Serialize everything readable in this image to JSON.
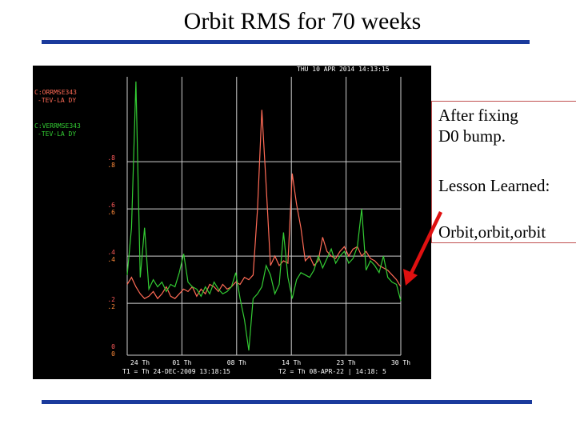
{
  "slide": {
    "title": "Orbit RMS for 70 weeks",
    "notes": {
      "after": "After fixing\nD0 bump.",
      "lesson": "Lesson Learned:",
      "orbit": "Orbit,orbit,orbit"
    },
    "accent_color": "#1a3a9c",
    "arrow_color": "#e01010"
  },
  "chart_data": {
    "type": "line",
    "header": "THU 10 APR 2014 14:13:15",
    "series": [
      {
        "name": "C:ORRMSE343",
        "legend_sub": "-TEV-LA DY",
        "color": "#ff6a55",
        "y": [
          0.28,
          0.31,
          0.27,
          0.24,
          0.22,
          0.23,
          0.25,
          0.22,
          0.24,
          0.27,
          0.23,
          0.22,
          0.24,
          0.26,
          0.25,
          0.27,
          0.23,
          0.26,
          0.24,
          0.28,
          0.27,
          0.25,
          0.28,
          0.26,
          0.27,
          0.29,
          0.28,
          0.31,
          0.3,
          0.32,
          0.6,
          1.02,
          0.7,
          0.36,
          0.4,
          0.36,
          0.38,
          0.37,
          0.75,
          0.62,
          0.52,
          0.38,
          0.4,
          0.36,
          0.38,
          0.48,
          0.42,
          0.4,
          0.39,
          0.42,
          0.44,
          0.4,
          0.43,
          0.44,
          0.4,
          0.42,
          0.39,
          0.38,
          0.36,
          0.35,
          0.34,
          0.32,
          0.3,
          0.27
        ]
      },
      {
        "name": "C:VERRMSE343",
        "legend_sub": "-TEV-LA DY",
        "color": "#33cc33",
        "y": [
          0.32,
          0.52,
          1.14,
          0.31,
          0.52,
          0.26,
          0.3,
          0.27,
          0.29,
          0.25,
          0.28,
          0.27,
          0.33,
          0.41,
          0.29,
          0.27,
          0.26,
          0.23,
          0.27,
          0.24,
          0.29,
          0.26,
          0.24,
          0.25,
          0.27,
          0.33,
          0.22,
          0.13,
          0.0,
          0.22,
          0.24,
          0.27,
          0.36,
          0.32,
          0.24,
          0.28,
          0.5,
          0.31,
          0.22,
          0.3,
          0.33,
          0.32,
          0.31,
          0.34,
          0.4,
          0.35,
          0.39,
          0.43,
          0.37,
          0.4,
          0.42,
          0.37,
          0.39,
          0.44,
          0.6,
          0.34,
          0.38,
          0.36,
          0.33,
          0.4,
          0.31,
          0.29,
          0.28,
          0.21
        ]
      }
    ],
    "y_ticks": [
      {
        "top": "0",
        "bottom": "0",
        "value": 0.0
      },
      {
        "top": ".2",
        "bottom": ".2",
        "value": 0.2
      },
      {
        "top": ".4",
        "bottom": ".4",
        "value": 0.4
      },
      {
        "top": ".6",
        "bottom": ".6",
        "value": 0.6
      },
      {
        "top": ".8",
        "bottom": ".8",
        "value": 0.8
      }
    ],
    "ylim": [
      -0.02,
      1.16
    ],
    "x_ticks": [
      "24 Th",
      "01 Th",
      "08 Th",
      "14 Th",
      "23 Th",
      "30 Th"
    ],
    "xlim": [
      0,
      63
    ],
    "footer_left": "T1 = Th 24-DEC-2009 13:18:15",
    "footer_right": "T2 = Th 08-APR-22 | 14:18: 5",
    "grid": true,
    "colors": {
      "background": "#000000",
      "grid": "#cfcfcf",
      "axis_text": "#ffffff",
      "top_label": "#ff5a5a",
      "bottom_label": "#ff8a3a"
    }
  }
}
